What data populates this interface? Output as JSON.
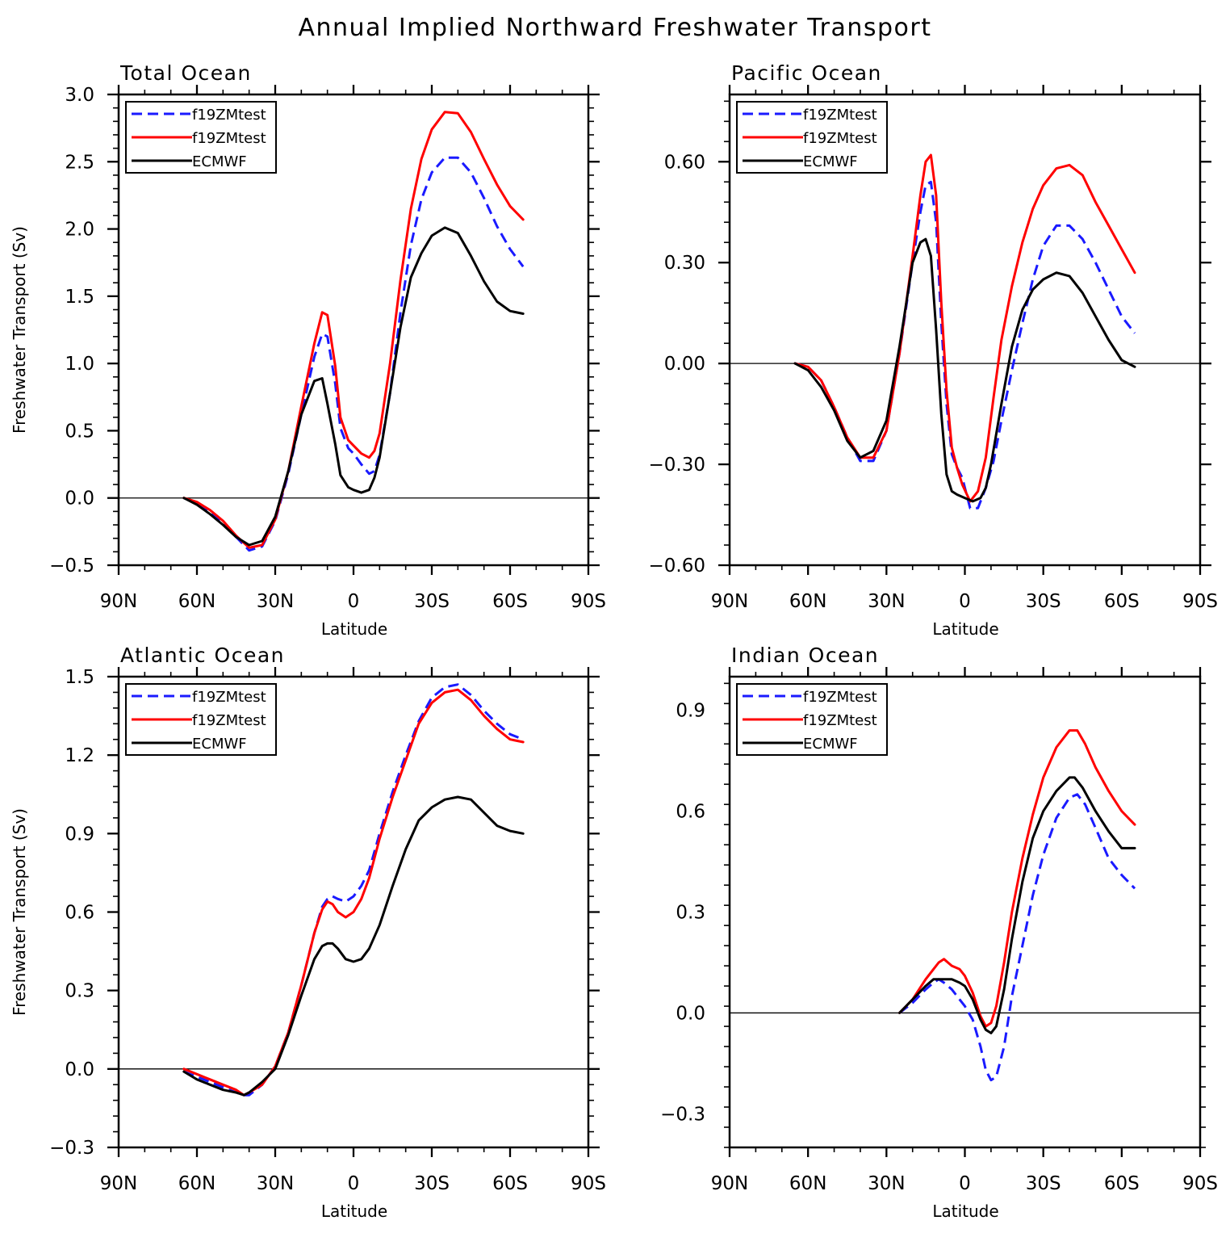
{
  "title": "Annual Implied Northward Freshwater Transport",
  "chart_data": [
    {
      "type": "line",
      "title": "Total Ocean",
      "xlabel": "Latitude",
      "ylabel": "Freshwater Transport (Sv)",
      "xlim": [
        90,
        -90
      ],
      "ylim": [
        -0.5,
        3.0
      ],
      "xticks": [
        90,
        60,
        30,
        0,
        -30,
        -60,
        -90
      ],
      "xtick_labels": [
        "90N",
        "60N",
        "30N",
        "0",
        "30S",
        "60S",
        "90S"
      ],
      "yticks": [
        -0.5,
        0.0,
        0.5,
        1.0,
        1.5,
        2.0,
        2.5,
        3.0
      ],
      "ytick_labels": [
        "−0.5",
        "0.0",
        "0.5",
        "1.0",
        "1.5",
        "2.0",
        "2.5",
        "3.0"
      ],
      "legend": [
        "f19ZMtest",
        "f19ZMtest",
        "ECMWF"
      ],
      "series": [
        {
          "name": "f19ZMtest",
          "color": "#1a1aff",
          "dash": "dashed",
          "x": [
            65,
            60,
            55,
            50,
            45,
            40,
            35,
            30,
            25,
            20,
            15,
            12,
            10,
            7,
            5,
            2,
            0,
            -3,
            -6,
            -8,
            -10,
            -14,
            -18,
            -22,
            -26,
            -30,
            -35,
            -40,
            -45,
            -50,
            -55,
            -60,
            -65
          ],
          "y": [
            0.0,
            -0.04,
            -0.1,
            -0.18,
            -0.29,
            -0.39,
            -0.36,
            -0.17,
            0.18,
            0.62,
            1.05,
            1.22,
            1.2,
            0.85,
            0.52,
            0.37,
            0.33,
            0.25,
            0.18,
            0.2,
            0.32,
            0.78,
            1.38,
            1.88,
            2.22,
            2.42,
            2.53,
            2.53,
            2.42,
            2.23,
            2.02,
            1.85,
            1.72
          ]
        },
        {
          "name": "f19ZMtest",
          "color": "#ff0000",
          "dash": "solid",
          "x": [
            65,
            60,
            55,
            50,
            45,
            40,
            35,
            30,
            25,
            20,
            15,
            12,
            10,
            7,
            5,
            2,
            0,
            -3,
            -6,
            -8,
            -10,
            -14,
            -18,
            -22,
            -26,
            -30,
            -35,
            -40,
            -45,
            -50,
            -55,
            -60,
            -65
          ],
          "y": [
            0.0,
            -0.03,
            -0.09,
            -0.17,
            -0.28,
            -0.37,
            -0.35,
            -0.16,
            0.2,
            0.68,
            1.15,
            1.38,
            1.36,
            0.98,
            0.6,
            0.43,
            0.39,
            0.33,
            0.3,
            0.35,
            0.48,
            1.0,
            1.62,
            2.15,
            2.52,
            2.74,
            2.87,
            2.86,
            2.72,
            2.52,
            2.33,
            2.17,
            2.07
          ]
        },
        {
          "name": "ECMWF",
          "color": "#000000",
          "dash": "solid",
          "x": [
            65,
            60,
            55,
            50,
            45,
            40,
            35,
            30,
            25,
            20,
            15,
            12,
            10,
            7,
            5,
            2,
            0,
            -3,
            -6,
            -8,
            -10,
            -14,
            -18,
            -22,
            -26,
            -30,
            -35,
            -40,
            -45,
            -50,
            -55,
            -60,
            -65
          ],
          "y": [
            0.0,
            -0.05,
            -0.12,
            -0.2,
            -0.29,
            -0.35,
            -0.32,
            -0.14,
            0.2,
            0.62,
            0.87,
            0.89,
            0.7,
            0.4,
            0.17,
            0.08,
            0.06,
            0.04,
            0.06,
            0.15,
            0.3,
            0.78,
            1.27,
            1.64,
            1.82,
            1.95,
            2.01,
            1.97,
            1.8,
            1.61,
            1.46,
            1.39,
            1.37
          ]
        }
      ]
    },
    {
      "type": "line",
      "title": "Pacific Ocean",
      "xlabel": "Latitude",
      "ylabel": "",
      "xlim": [
        90,
        -90
      ],
      "ylim": [
        -0.6,
        0.8
      ],
      "xticks": [
        90,
        60,
        30,
        0,
        -30,
        -60,
        -90
      ],
      "xtick_labels": [
        "90N",
        "60N",
        "30N",
        "0",
        "30S",
        "60S",
        "90S"
      ],
      "yticks": [
        -0.6,
        -0.3,
        0.0,
        0.3,
        0.6
      ],
      "ytick_labels": [
        "−0.60",
        "−0.30",
        "0.00",
        "0.30",
        "0.60"
      ],
      "legend": [
        "f19ZMtest",
        "f19ZMtest",
        "ECMWF"
      ],
      "series": [
        {
          "name": "f19ZMtest",
          "color": "#1a1aff",
          "dash": "dashed",
          "x": [
            65,
            60,
            55,
            50,
            45,
            40,
            35,
            30,
            25,
            20,
            17,
            15,
            13,
            11,
            9,
            7,
            5,
            3,
            1,
            -2,
            -5,
            -8,
            -11,
            -14,
            -18,
            -22,
            -26,
            -30,
            -35,
            -40,
            -45,
            -50,
            -55,
            -60,
            -65
          ],
          "y": [
            0.0,
            -0.01,
            -0.05,
            -0.13,
            -0.22,
            -0.29,
            -0.29,
            -0.2,
            0.03,
            0.3,
            0.45,
            0.53,
            0.54,
            0.42,
            0.12,
            -0.12,
            -0.27,
            -0.31,
            -0.34,
            -0.43,
            -0.43,
            -0.37,
            -0.29,
            -0.17,
            -0.02,
            0.12,
            0.25,
            0.35,
            0.41,
            0.41,
            0.37,
            0.3,
            0.22,
            0.14,
            0.09
          ]
        },
        {
          "name": "f19ZMtest",
          "color": "#ff0000",
          "dash": "solid",
          "x": [
            65,
            60,
            55,
            50,
            45,
            40,
            35,
            30,
            25,
            20,
            17,
            15,
            13,
            11,
            9,
            7,
            5,
            3,
            1,
            -2,
            -5,
            -8,
            -11,
            -14,
            -18,
            -22,
            -26,
            -30,
            -35,
            -40,
            -45,
            -50,
            -55,
            -60,
            -65
          ],
          "y": [
            0.0,
            -0.01,
            -0.05,
            -0.13,
            -0.22,
            -0.28,
            -0.28,
            -0.2,
            0.03,
            0.32,
            0.5,
            0.6,
            0.62,
            0.5,
            0.18,
            -0.08,
            -0.25,
            -0.31,
            -0.36,
            -0.41,
            -0.38,
            -0.28,
            -0.1,
            0.07,
            0.23,
            0.36,
            0.46,
            0.53,
            0.58,
            0.59,
            0.56,
            0.48,
            0.41,
            0.34,
            0.27
          ]
        },
        {
          "name": "ECMWF",
          "color": "#000000",
          "dash": "solid",
          "x": [
            65,
            60,
            55,
            50,
            45,
            40,
            35,
            30,
            25,
            20,
            17,
            15,
            13,
            11,
            9,
            7,
            5,
            3,
            0,
            -3,
            -6,
            -8,
            -10,
            -14,
            -18,
            -22,
            -26,
            -30,
            -35,
            -40,
            -45,
            -50,
            -55,
            -60,
            -65
          ],
          "y": [
            0.0,
            -0.02,
            -0.07,
            -0.14,
            -0.23,
            -0.28,
            -0.26,
            -0.17,
            0.05,
            0.3,
            0.36,
            0.37,
            0.32,
            0.1,
            -0.15,
            -0.33,
            -0.38,
            -0.39,
            -0.4,
            -0.41,
            -0.4,
            -0.37,
            -0.3,
            -0.12,
            0.05,
            0.16,
            0.22,
            0.25,
            0.27,
            0.26,
            0.21,
            0.14,
            0.07,
            0.01,
            -0.01
          ]
        }
      ]
    },
    {
      "type": "line",
      "title": "Atlantic Ocean",
      "xlabel": "Latitude",
      "ylabel": "Freshwater Transport (Sv)",
      "xlim": [
        90,
        -90
      ],
      "ylim": [
        -0.3,
        1.5
      ],
      "xticks": [
        90,
        60,
        30,
        0,
        -30,
        -60,
        -90
      ],
      "xtick_labels": [
        "90N",
        "60N",
        "30N",
        "0",
        "30S",
        "60S",
        "90S"
      ],
      "yticks": [
        -0.3,
        0.0,
        0.3,
        0.6,
        0.9,
        1.2,
        1.5
      ],
      "ytick_labels": [
        "−0.3",
        "0.0",
        "0.3",
        "0.6",
        "0.9",
        "1.2",
        "1.5"
      ],
      "legend": [
        "f19ZMtest",
        "f19ZMtest",
        "ECMWF"
      ],
      "series": [
        {
          "name": "f19ZMtest",
          "color": "#1a1aff",
          "dash": "dashed",
          "x": [
            65,
            60,
            55,
            50,
            45,
            42,
            40,
            35,
            30,
            25,
            20,
            15,
            12,
            10,
            8,
            6,
            3,
            0,
            -3,
            -6,
            -10,
            -15,
            -20,
            -25,
            -30,
            -35,
            -40,
            -45,
            -50,
            -55,
            -60,
            -65
          ],
          "y": [
            -0.01,
            -0.03,
            -0.05,
            -0.07,
            -0.09,
            -0.1,
            -0.1,
            -0.06,
            0.01,
            0.14,
            0.32,
            0.52,
            0.62,
            0.65,
            0.66,
            0.65,
            0.64,
            0.66,
            0.7,
            0.76,
            0.9,
            1.06,
            1.2,
            1.33,
            1.42,
            1.46,
            1.47,
            1.43,
            1.37,
            1.32,
            1.28,
            1.26
          ]
        },
        {
          "name": "f19ZMtest",
          "color": "#ff0000",
          "dash": "solid",
          "x": [
            65,
            60,
            55,
            50,
            45,
            42,
            40,
            35,
            30,
            25,
            20,
            15,
            12,
            10,
            8,
            6,
            3,
            0,
            -3,
            -6,
            -10,
            -15,
            -20,
            -25,
            -30,
            -35,
            -40,
            -45,
            -50,
            -55,
            -60,
            -65
          ],
          "y": [
            0.0,
            -0.02,
            -0.04,
            -0.06,
            -0.08,
            -0.1,
            -0.09,
            -0.06,
            0.01,
            0.14,
            0.32,
            0.52,
            0.61,
            0.64,
            0.63,
            0.6,
            0.58,
            0.6,
            0.65,
            0.73,
            0.88,
            1.04,
            1.18,
            1.32,
            1.4,
            1.44,
            1.45,
            1.41,
            1.35,
            1.3,
            1.26,
            1.25
          ]
        },
        {
          "name": "ECMWF",
          "color": "#000000",
          "dash": "solid",
          "x": [
            65,
            60,
            55,
            50,
            45,
            42,
            40,
            35,
            30,
            25,
            20,
            15,
            12,
            10,
            8,
            6,
            3,
            0,
            -3,
            -6,
            -10,
            -15,
            -20,
            -25,
            -30,
            -35,
            -40,
            -45,
            -50,
            -55,
            -60,
            -65
          ],
          "y": [
            -0.01,
            -0.04,
            -0.06,
            -0.08,
            -0.09,
            -0.1,
            -0.09,
            -0.05,
            0.0,
            0.13,
            0.28,
            0.42,
            0.47,
            0.48,
            0.48,
            0.46,
            0.42,
            0.41,
            0.42,
            0.46,
            0.55,
            0.7,
            0.84,
            0.95,
            1.0,
            1.03,
            1.04,
            1.03,
            0.98,
            0.93,
            0.91,
            0.9
          ]
        }
      ]
    },
    {
      "type": "line",
      "title": "Indian Ocean",
      "xlabel": "Latitude",
      "ylabel": "",
      "xlim": [
        90,
        -90
      ],
      "ylim": [
        -0.4,
        1.0
      ],
      "xticks": [
        90,
        60,
        30,
        0,
        -30,
        -60,
        -90
      ],
      "xtick_labels": [
        "90N",
        "60N",
        "30N",
        "0",
        "30S",
        "60S",
        "90S"
      ],
      "yticks": [
        -0.3,
        0.0,
        0.3,
        0.6,
        0.9
      ],
      "ytick_labels": [
        "−0.3",
        "0.0",
        "0.3",
        "0.6",
        "0.9"
      ],
      "legend": [
        "f19ZMtest",
        "f19ZMtest",
        "ECMWF"
      ],
      "series": [
        {
          "name": "f19ZMtest",
          "color": "#1a1aff",
          "dash": "dashed",
          "x": [
            25,
            20,
            15,
            12,
            10,
            8,
            5,
            2,
            0,
            -3,
            -6,
            -8,
            -10,
            -12,
            -15,
            -18,
            -22,
            -26,
            -30,
            -35,
            -40,
            -43,
            -46,
            -50,
            -55,
            -60,
            -65
          ],
          "y": [
            0.0,
            0.03,
            0.07,
            0.09,
            0.1,
            0.09,
            0.07,
            0.04,
            0.02,
            -0.02,
            -0.1,
            -0.17,
            -0.2,
            -0.19,
            -0.1,
            0.05,
            0.2,
            0.35,
            0.47,
            0.58,
            0.64,
            0.65,
            0.62,
            0.55,
            0.46,
            0.41,
            0.37
          ]
        },
        {
          "name": "f19ZMtest",
          "color": "#ff0000",
          "dash": "solid",
          "x": [
            25,
            20,
            15,
            12,
            10,
            8,
            5,
            2,
            0,
            -3,
            -6,
            -8,
            -10,
            -12,
            -15,
            -18,
            -22,
            -26,
            -30,
            -35,
            -40,
            -43,
            -46,
            -50,
            -55,
            -60,
            -65
          ],
          "y": [
            0.0,
            0.04,
            0.1,
            0.13,
            0.15,
            0.16,
            0.14,
            0.13,
            0.11,
            0.06,
            -0.01,
            -0.04,
            -0.03,
            0.02,
            0.15,
            0.3,
            0.46,
            0.59,
            0.7,
            0.79,
            0.84,
            0.84,
            0.8,
            0.73,
            0.66,
            0.6,
            0.56
          ]
        },
        {
          "name": "ECMWF",
          "color": "#000000",
          "dash": "solid",
          "x": [
            25,
            20,
            15,
            12,
            10,
            8,
            5,
            2,
            0,
            -3,
            -6,
            -8,
            -10,
            -12,
            -15,
            -18,
            -22,
            -26,
            -30,
            -35,
            -40,
            -42,
            -45,
            -50,
            -55,
            -60,
            -65
          ],
          "y": [
            0.0,
            0.04,
            0.08,
            0.1,
            0.1,
            0.1,
            0.1,
            0.09,
            0.08,
            0.04,
            -0.02,
            -0.05,
            -0.06,
            -0.04,
            0.07,
            0.22,
            0.39,
            0.52,
            0.6,
            0.66,
            0.7,
            0.7,
            0.67,
            0.6,
            0.54,
            0.49,
            0.49
          ]
        }
      ]
    }
  ]
}
